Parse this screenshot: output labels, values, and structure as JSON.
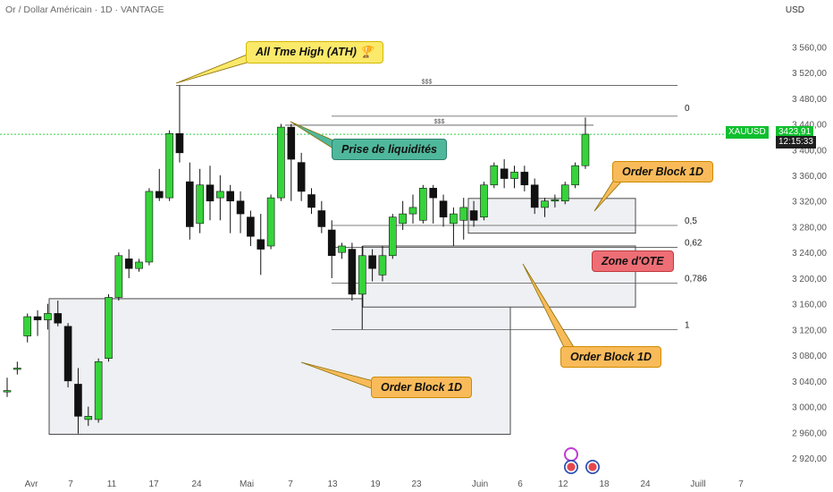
{
  "header": {
    "title": "Or / Dollar Américain · 1D · VANTAGE",
    "currency": "USD"
  },
  "colors": {
    "up": "#36d33a",
    "down": "#111111",
    "wick": "#111111",
    "price_line": "#2fcf4a",
    "zone_fill": "#eef0f3",
    "zone_border": "#4a4a4a"
  },
  "price_badge": {
    "symbol": "XAUUSD",
    "price": "3423,91",
    "countdown": "12:15:33"
  },
  "callouts": {
    "ath": "All Tme High (ATH) 🏆",
    "liquidity": "Prise de liquidités",
    "ob_top": "Order Block 1D",
    "ote": "Zone d'OTE",
    "ob_mid": "Order Block 1D",
    "ob_bottom": "Order Block 1D"
  },
  "chart_data": {
    "type": "candlestick",
    "symbol": "XAUUSD",
    "ylim": [
      2895,
      3605
    ],
    "y_ticks": [
      "3 560,00",
      "3 520,00",
      "3 480,00",
      "3 440,00",
      "3 400,00",
      "3 360,00",
      "3 320,00",
      "3 280,00",
      "3 240,00",
      "3 200,00",
      "3 160,00",
      "3 120,00",
      "3 080,00",
      "3 040,00",
      "3 000,00",
      "2 960,00",
      "2 920,00"
    ],
    "x_ticks": [
      "Avr",
      "7",
      "11",
      "17",
      "24",
      "Mai",
      "7",
      "13",
      "19",
      "23",
      "Juin",
      "6",
      "12",
      "18",
      "24",
      "Juill",
      "7"
    ],
    "candles": [
      {
        "o": 3025,
        "h": 3045,
        "l": 3015,
        "c": 3025
      },
      {
        "o": 3060,
        "h": 3070,
        "l": 3050,
        "c": 3060
      },
      {
        "o": 3110,
        "h": 3145,
        "l": 3100,
        "c": 3140
      },
      {
        "o": 3140,
        "h": 3150,
        "l": 3110,
        "c": 3135
      },
      {
        "o": 3135,
        "h": 3160,
        "l": 3120,
        "c": 3145
      },
      {
        "o": 3145,
        "h": 3165,
        "l": 3125,
        "c": 3130
      },
      {
        "o": 3125,
        "h": 3130,
        "l": 3030,
        "c": 3040
      },
      {
        "o": 3035,
        "h": 3060,
        "l": 2958,
        "c": 2985
      },
      {
        "o": 2980,
        "h": 3000,
        "l": 2970,
        "c": 2985
      },
      {
        "o": 2980,
        "h": 3075,
        "l": 2975,
        "c": 3070
      },
      {
        "o": 3075,
        "h": 3175,
        "l": 3070,
        "c": 3170
      },
      {
        "o": 3170,
        "h": 3240,
        "l": 3165,
        "c": 3235
      },
      {
        "o": 3230,
        "h": 3245,
        "l": 3200,
        "c": 3215
      },
      {
        "o": 3215,
        "h": 3230,
        "l": 3210,
        "c": 3225
      },
      {
        "o": 3225,
        "h": 3340,
        "l": 3220,
        "c": 3335
      },
      {
        "o": 3335,
        "h": 3370,
        "l": 3320,
        "c": 3325
      },
      {
        "o": 3325,
        "h": 3430,
        "l": 3320,
        "c": 3425
      },
      {
        "o": 3425,
        "h": 3500,
        "l": 3380,
        "c": 3395
      },
      {
        "o": 3350,
        "h": 3380,
        "l": 3260,
        "c": 3280
      },
      {
        "o": 3285,
        "h": 3370,
        "l": 3270,
        "c": 3345
      },
      {
        "o": 3345,
        "h": 3375,
        "l": 3290,
        "c": 3320
      },
      {
        "o": 3325,
        "h": 3360,
        "l": 3290,
        "c": 3335
      },
      {
        "o": 3335,
        "h": 3345,
        "l": 3270,
        "c": 3320
      },
      {
        "o": 3320,
        "h": 3335,
        "l": 3270,
        "c": 3300
      },
      {
        "o": 3295,
        "h": 3305,
        "l": 3250,
        "c": 3265
      },
      {
        "o": 3260,
        "h": 3300,
        "l": 3205,
        "c": 3245
      },
      {
        "o": 3250,
        "h": 3330,
        "l": 3245,
        "c": 3325
      },
      {
        "o": 3325,
        "h": 3440,
        "l": 3320,
        "c": 3435
      },
      {
        "o": 3435,
        "h": 3440,
        "l": 3320,
        "c": 3385
      },
      {
        "o": 3380,
        "h": 3395,
        "l": 3320,
        "c": 3335
      },
      {
        "o": 3330,
        "h": 3340,
        "l": 3300,
        "c": 3310
      },
      {
        "o": 3305,
        "h": 3320,
        "l": 3270,
        "c": 3280
      },
      {
        "o": 3275,
        "h": 3290,
        "l": 3200,
        "c": 3235
      },
      {
        "o": 3240,
        "h": 3255,
        "l": 3230,
        "c": 3250
      },
      {
        "o": 3245,
        "h": 3255,
        "l": 3165,
        "c": 3175
      },
      {
        "o": 3175,
        "h": 3250,
        "l": 3120,
        "c": 3235
      },
      {
        "o": 3235,
        "h": 3245,
        "l": 3195,
        "c": 3215
      },
      {
        "o": 3205,
        "h": 3250,
        "l": 3195,
        "c": 3235
      },
      {
        "o": 3235,
        "h": 3300,
        "l": 3230,
        "c": 3295
      },
      {
        "o": 3285,
        "h": 3320,
        "l": 3275,
        "c": 3300
      },
      {
        "o": 3300,
        "h": 3330,
        "l": 3285,
        "c": 3310
      },
      {
        "o": 3290,
        "h": 3345,
        "l": 3285,
        "c": 3340
      },
      {
        "o": 3340,
        "h": 3345,
        "l": 3285,
        "c": 3325
      },
      {
        "o": 3320,
        "h": 3330,
        "l": 3280,
        "c": 3295
      },
      {
        "o": 3285,
        "h": 3310,
        "l": 3250,
        "c": 3300
      },
      {
        "o": 3290,
        "h": 3325,
        "l": 3260,
        "c": 3310
      },
      {
        "o": 3305,
        "h": 3320,
        "l": 3280,
        "c": 3290
      },
      {
        "o": 3295,
        "h": 3350,
        "l": 3290,
        "c": 3345
      },
      {
        "o": 3345,
        "h": 3380,
        "l": 3340,
        "c": 3375
      },
      {
        "o": 3370,
        "h": 3385,
        "l": 3340,
        "c": 3355
      },
      {
        "o": 3355,
        "h": 3375,
        "l": 3340,
        "c": 3365
      },
      {
        "o": 3365,
        "h": 3375,
        "l": 3335,
        "c": 3345
      },
      {
        "o": 3345,
        "h": 3355,
        "l": 3300,
        "c": 3310
      },
      {
        "o": 3310,
        "h": 3325,
        "l": 3295,
        "c": 3320
      },
      {
        "o": 3320,
        "h": 3330,
        "l": 3310,
        "c": 3322
      },
      {
        "o": 3320,
        "h": 3350,
        "l": 3315,
        "c": 3345
      },
      {
        "o": 3345,
        "h": 3380,
        "l": 3340,
        "c": 3375
      },
      {
        "o": 3375,
        "h": 3450,
        "l": 3370,
        "c": 3424
      }
    ],
    "horizontal_lines": [
      {
        "price": 3500,
        "label": "$$$"
      },
      {
        "price": 3452,
        "label": "0"
      },
      {
        "price": 3438,
        "label": "$$$"
      },
      {
        "price": 3282,
        "label": "0,5"
      },
      {
        "price": 3248,
        "label": "0,62"
      },
      {
        "price": 3192,
        "label": "0,786"
      },
      {
        "price": 3120,
        "label": "1"
      }
    ],
    "zones": [
      {
        "name": "order-block-bottom",
        "top": 3168,
        "bottom": 2957
      },
      {
        "name": "order-block-top",
        "top": 3324,
        "bottom": 3270
      },
      {
        "name": "ote-zone",
        "top": 3250,
        "bottom": 3155
      }
    ],
    "current_price": 3423.91
  }
}
